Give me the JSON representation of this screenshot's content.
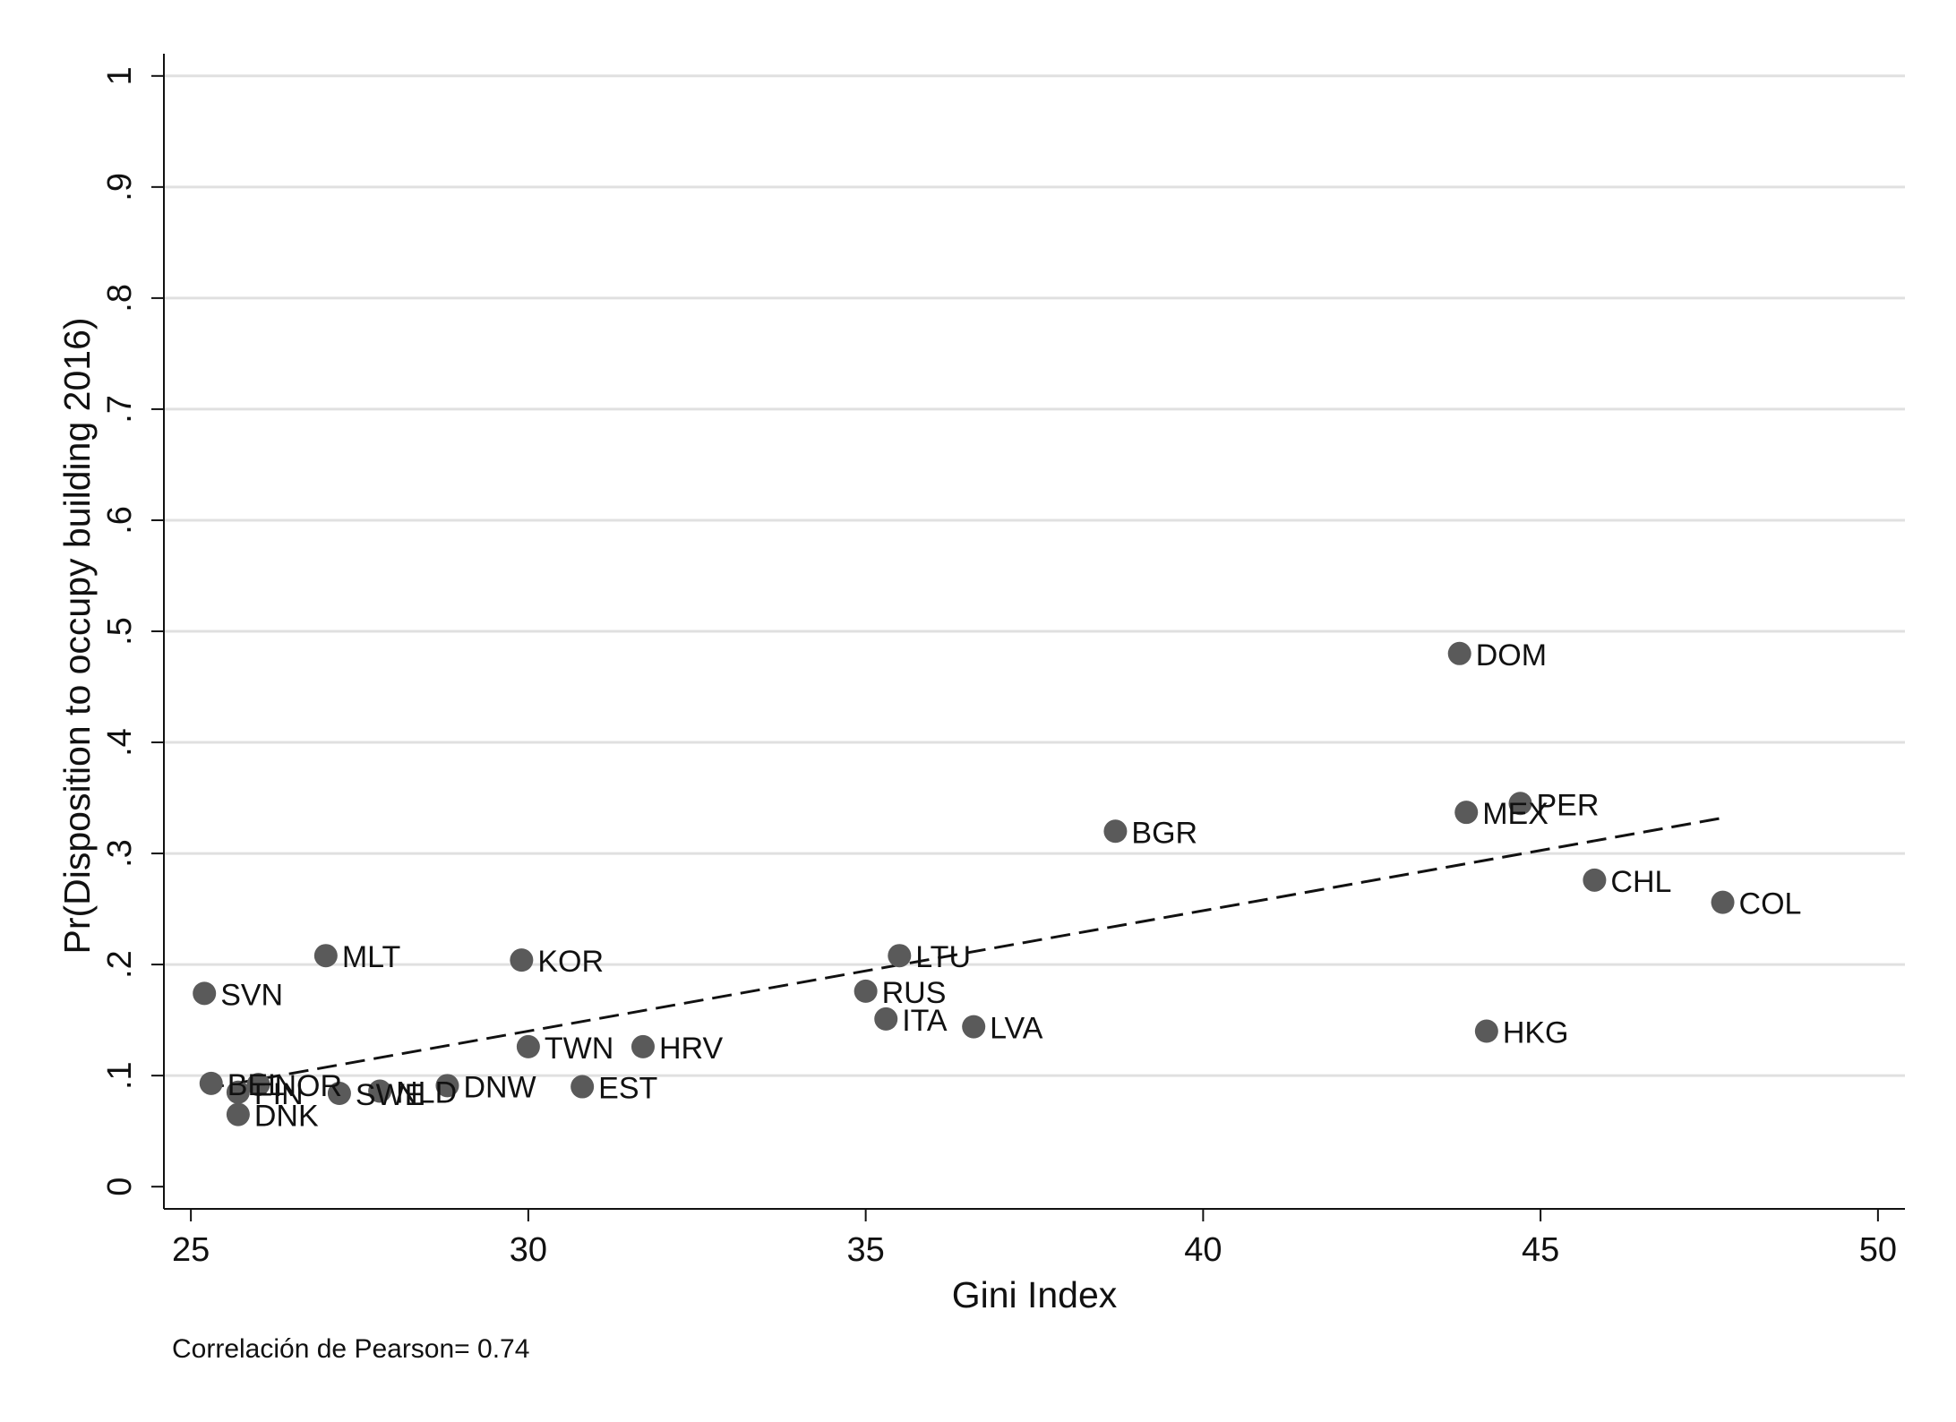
{
  "chart_data": {
    "type": "scatter",
    "xlabel": "Gini Index",
    "ylabel": "Pr(Disposition to occupy building 2016)",
    "note": "Correlación de Pearson= 0.74",
    "xlim": [
      24.6,
      50.4
    ],
    "ylim": [
      -0.02,
      1.02
    ],
    "x_ticks": [
      25,
      30,
      35,
      40,
      45,
      50
    ],
    "x_tick_labels": [
      "25",
      "30",
      "35",
      "40",
      "45",
      "50"
    ],
    "y_ticks": [
      0,
      0.1,
      0.2,
      0.3,
      0.4,
      0.5,
      0.6,
      0.7,
      0.8,
      0.9,
      1
    ],
    "y_tick_labels": [
      "0",
      ".1",
      ".2",
      ".3",
      ".4",
      ".5",
      ".6",
      ".7",
      ".8",
      ".9",
      "1"
    ],
    "grid": true,
    "point_color": "#5a5a5a",
    "points": [
      {
        "label": "SVN",
        "x": 25.2,
        "y": 0.174
      },
      {
        "label": "BEL",
        "x": 25.3,
        "y": 0.093
      },
      {
        "label": "FIN",
        "x": 25.7,
        "y": 0.085
      },
      {
        "label": "NOR",
        "x": 26.0,
        "y": 0.092
      },
      {
        "label": "DNK",
        "x": 25.7,
        "y": 0.065
      },
      {
        "label": "MLT",
        "x": 27.0,
        "y": 0.208
      },
      {
        "label": "SWE",
        "x": 27.2,
        "y": 0.084
      },
      {
        "label": "NLD",
        "x": 27.8,
        "y": 0.086
      },
      {
        "label": "DNW",
        "x": 28.8,
        "y": 0.091
      },
      {
        "label": "KOR",
        "x": 29.9,
        "y": 0.204
      },
      {
        "label": "TWN",
        "x": 30.0,
        "y": 0.126
      },
      {
        "label": "EST",
        "x": 30.8,
        "y": 0.09
      },
      {
        "label": "HRV",
        "x": 31.7,
        "y": 0.126
      },
      {
        "label": "RUS",
        "x": 35.0,
        "y": 0.176
      },
      {
        "label": "ITA",
        "x": 35.3,
        "y": 0.151
      },
      {
        "label": "LTU",
        "x": 35.5,
        "y": 0.208
      },
      {
        "label": "LVA",
        "x": 36.6,
        "y": 0.144
      },
      {
        "label": "BGR",
        "x": 38.7,
        "y": 0.32
      },
      {
        "label": "DOM",
        "x": 43.8,
        "y": 0.48
      },
      {
        "label": "MEX",
        "x": 43.9,
        "y": 0.337
      },
      {
        "label": "HKG",
        "x": 44.2,
        "y": 0.14
      },
      {
        "label": "PER",
        "x": 44.7,
        "y": 0.345
      },
      {
        "label": "CHL",
        "x": 45.8,
        "y": 0.276
      },
      {
        "label": "COL",
        "x": 47.7,
        "y": 0.256
      }
    ],
    "fit_line": {
      "style": "dashed",
      "x": [
        25.2,
        47.7
      ],
      "y": [
        0.088,
        0.332
      ]
    }
  }
}
